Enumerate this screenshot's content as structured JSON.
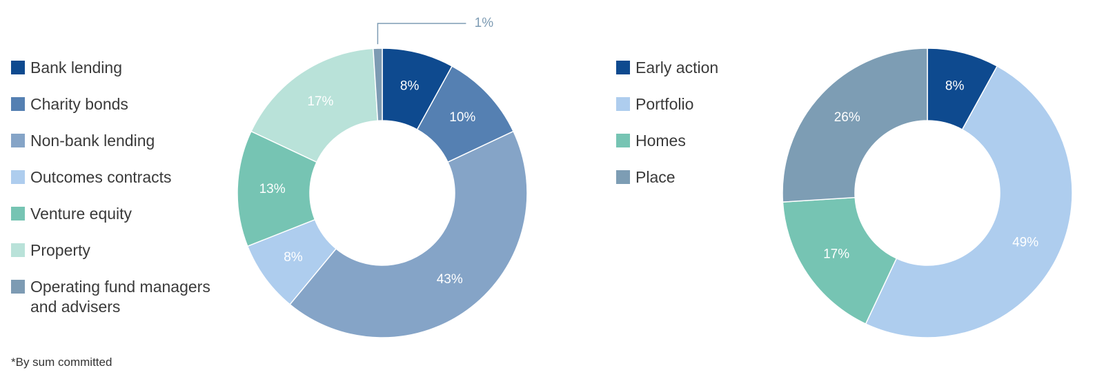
{
  "footnote": "*By sum committed",
  "chart_data": [
    {
      "type": "pie",
      "donut": true,
      "legend_position": "left",
      "categories": [
        "Bank lending",
        "Charity bonds",
        "Non-bank lending",
        "Outcomes contracts",
        "Venture equity",
        "Property",
        "Operating fund managers\nand advisers"
      ],
      "values": [
        8,
        10,
        43,
        8,
        13,
        17,
        1
      ],
      "labels": [
        "8%",
        "10%",
        "43%",
        "8%",
        "13%",
        "17%",
        "1%"
      ],
      "colors": [
        "#0e4a8f",
        "#5580b2",
        "#85a4c7",
        "#aecdee",
        "#76c4b3",
        "#b9e2d9",
        "#7d9bb3"
      ],
      "label_colors": [
        "#ffffff",
        "#ffffff",
        "#ffffff",
        "#ffffff",
        "#ffffff",
        "#ffffff",
        "#7d9bb3"
      ]
    },
    {
      "type": "pie",
      "donut": true,
      "legend_position": "left",
      "categories": [
        "Early action",
        "Portfolio",
        "Homes",
        "Place"
      ],
      "values": [
        8,
        49,
        17,
        26
      ],
      "labels": [
        "8%",
        "49%",
        "17%",
        "26%"
      ],
      "colors": [
        "#0e4a8f",
        "#aecdee",
        "#76c4b3",
        "#7d9db4"
      ],
      "label_colors": [
        "#ffffff",
        "#ffffff",
        "#ffffff",
        "#ffffff"
      ]
    }
  ]
}
